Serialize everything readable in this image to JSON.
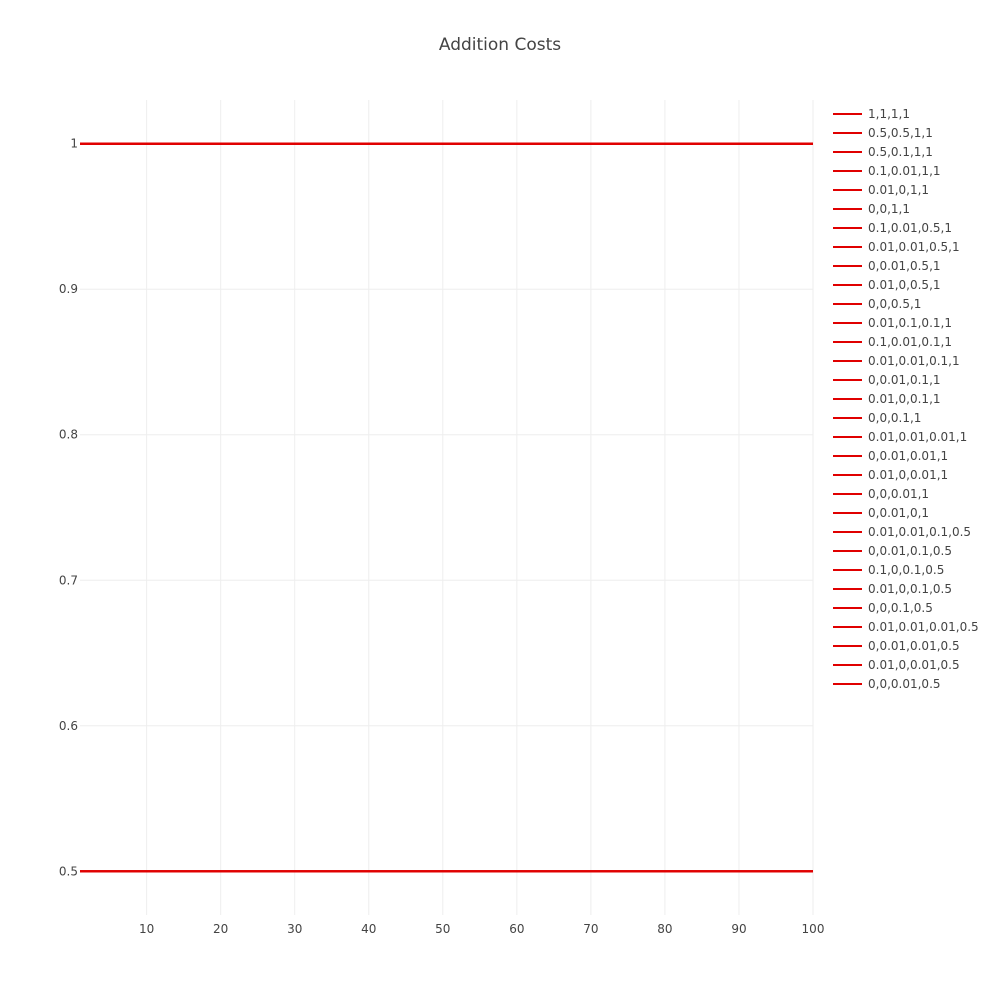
{
  "chart_data": {
    "type": "line",
    "title": "Addition Costs",
    "xlabel": "",
    "ylabel": "",
    "xlim": [
      1,
      100
    ],
    "ylim": [
      0.47,
      1.03
    ],
    "x_ticks": [
      10,
      20,
      30,
      40,
      50,
      60,
      70,
      80,
      90,
      100
    ],
    "y_ticks": [
      0.5,
      0.6,
      0.7,
      0.8,
      0.9,
      1
    ],
    "grid": true,
    "legend_position": "right",
    "line_color": "#e00000",
    "x": [
      1,
      100
    ],
    "series": [
      {
        "name": "1,1,1,1",
        "values": [
          1,
          1
        ]
      },
      {
        "name": "0.5,0.5,1,1",
        "values": [
          1,
          1
        ]
      },
      {
        "name": "0.5,0.1,1,1",
        "values": [
          1,
          1
        ]
      },
      {
        "name": "0.1,0.01,1,1",
        "values": [
          1,
          1
        ]
      },
      {
        "name": "0.01,0,1,1",
        "values": [
          1,
          1
        ]
      },
      {
        "name": "0,0,1,1",
        "values": [
          1,
          1
        ]
      },
      {
        "name": "0.1,0.01,0.5,1",
        "values": [
          1,
          1
        ]
      },
      {
        "name": "0.01,0.01,0.5,1",
        "values": [
          1,
          1
        ]
      },
      {
        "name": "0,0.01,0.5,1",
        "values": [
          1,
          1
        ]
      },
      {
        "name": "0.01,0,0.5,1",
        "values": [
          1,
          1
        ]
      },
      {
        "name": "0,0,0.5,1",
        "values": [
          1,
          1
        ]
      },
      {
        "name": "0.01,0.1,0.1,1",
        "values": [
          1,
          1
        ]
      },
      {
        "name": "0.1,0.01,0.1,1",
        "values": [
          1,
          1
        ]
      },
      {
        "name": "0.01,0.01,0.1,1",
        "values": [
          1,
          1
        ]
      },
      {
        "name": "0,0.01,0.1,1",
        "values": [
          1,
          1
        ]
      },
      {
        "name": "0.01,0,0.1,1",
        "values": [
          1,
          1
        ]
      },
      {
        "name": "0,0,0.1,1",
        "values": [
          1,
          1
        ]
      },
      {
        "name": "0.01,0.01,0.01,1",
        "values": [
          1,
          1
        ]
      },
      {
        "name": "0,0.01,0.01,1",
        "values": [
          1,
          1
        ]
      },
      {
        "name": "0.01,0,0.01,1",
        "values": [
          1,
          1
        ]
      },
      {
        "name": "0,0,0.01,1",
        "values": [
          1,
          1
        ]
      },
      {
        "name": "0,0.01,0,1",
        "values": [
          1,
          1
        ]
      },
      {
        "name": "0.01,0.01,0.1,0.5",
        "values": [
          0.5,
          0.5
        ]
      },
      {
        "name": "0,0.01,0.1,0.5",
        "values": [
          0.5,
          0.5
        ]
      },
      {
        "name": "0.1,0,0.1,0.5",
        "values": [
          0.5,
          0.5
        ]
      },
      {
        "name": "0.01,0,0.1,0.5",
        "values": [
          0.5,
          0.5
        ]
      },
      {
        "name": "0,0,0.1,0.5",
        "values": [
          0.5,
          0.5
        ]
      },
      {
        "name": "0.01,0.01,0.01,0.5",
        "values": [
          0.5,
          0.5
        ]
      },
      {
        "name": "0,0.01,0.01,0.5",
        "values": [
          0.5,
          0.5
        ]
      },
      {
        "name": "0.01,0,0.01,0.5",
        "values": [
          0.5,
          0.5
        ]
      },
      {
        "name": "0,0,0.01,0.5",
        "values": [
          0.5,
          0.5
        ]
      }
    ]
  }
}
